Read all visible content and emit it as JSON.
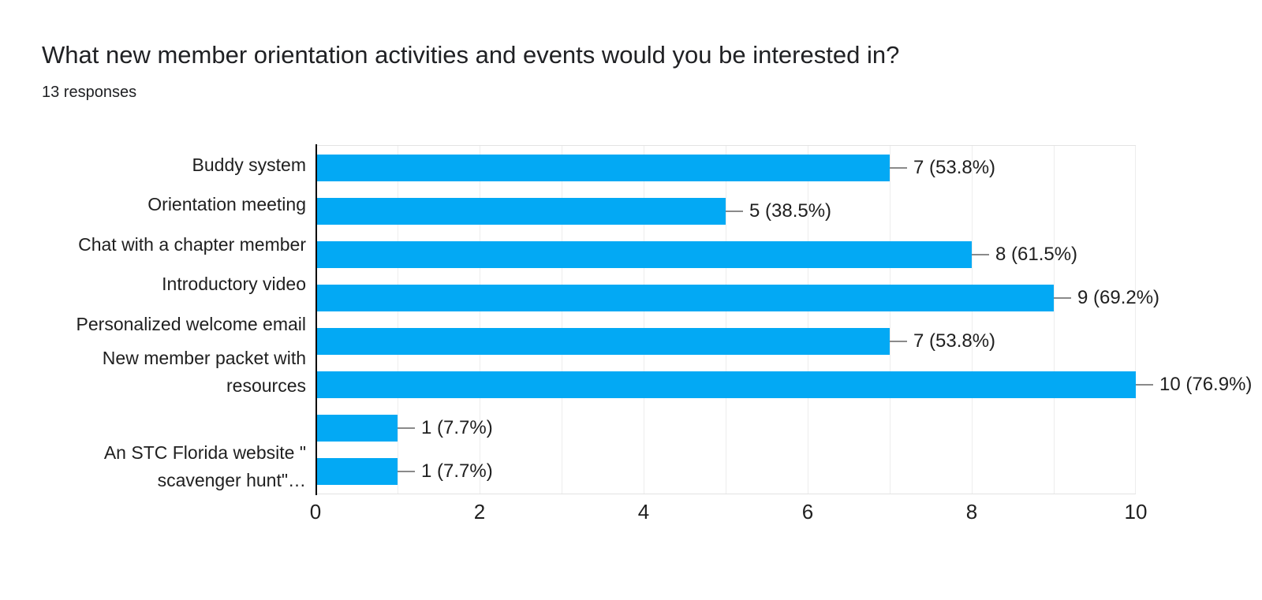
{
  "header": {
    "title": "What new member orientation activities and events would you be interested in?",
    "responses_label": "13 responses"
  },
  "chart_data": {
    "type": "bar",
    "orientation": "horizontal",
    "title": "What new member orientation activities and events would you be interested in?",
    "subtitle": "13 responses",
    "response_count": 13,
    "categories": [
      "Buddy system",
      "Orientation meeting",
      "Chat with a chapter member",
      "Introductory video",
      "Personalized welcome email",
      "New member packet with\nresources",
      "",
      "An STC Florida website \"\nscavenger hunt\"…"
    ],
    "values": [
      7,
      5,
      8,
      9,
      7,
      10,
      1,
      1
    ],
    "percentages": [
      53.8,
      38.5,
      61.5,
      69.2,
      53.8,
      76.9,
      7.7,
      7.7
    ],
    "value_labels": [
      "7 (53.8%)",
      "5 (38.5%)",
      "8 (61.5%)",
      "9 (69.2%)",
      "7 (53.8%)",
      "10 (76.9%)",
      "1 (7.7%)",
      "1 (7.7%)"
    ],
    "xlabel": "",
    "ylabel": "",
    "xlim": [
      0,
      10
    ],
    "x_ticks": [
      0,
      2,
      4,
      6,
      8,
      10
    ],
    "gridline_step": 1,
    "grid_on": true,
    "legend": "none",
    "colors": {
      "bar": "#03a9f4",
      "axis": "#000000",
      "gridline": "#ededed",
      "plot_border": "#e3e3e3",
      "leader_line": "#8a8a8a",
      "text": "#1f1f1f",
      "title_text": "#202124",
      "background": "#ffffff"
    }
  }
}
